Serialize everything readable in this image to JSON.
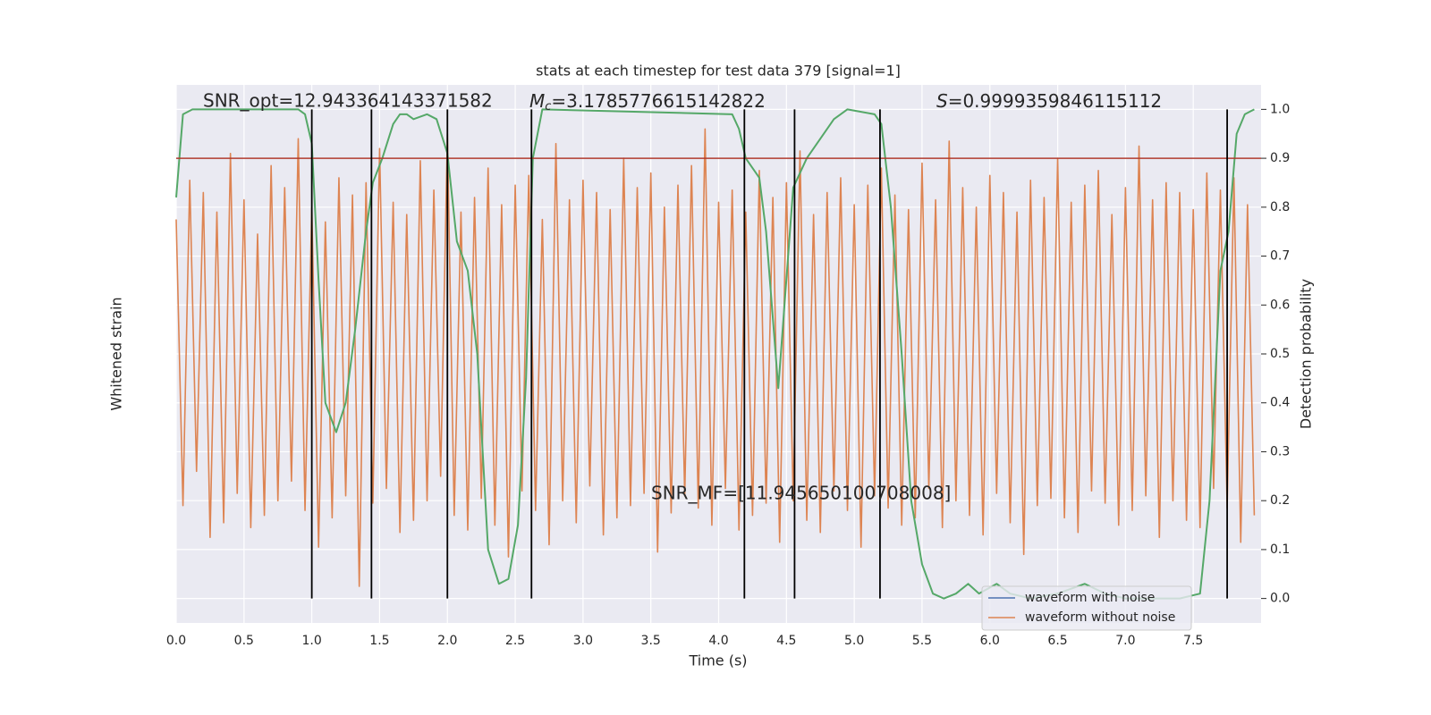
{
  "chart_data": {
    "type": "line",
    "title": "stats at each timestep for test data 379 [signal=1]",
    "xlabel": "Time (s)",
    "ylabel": "Whitened strain",
    "y2label": "Detection probability",
    "xlim": [
      0,
      8
    ],
    "ylim": [
      -1.1,
      1.1
    ],
    "y2lim": [
      -0.05,
      1.05
    ],
    "xticks": [
      {
        "value": 0,
        "label": "0.0"
      },
      0.5,
      {
        "value": 1,
        "label": "1.0"
      },
      1.5,
      {
        "value": 2,
        "label": "2.0"
      },
      2.5,
      {
        "value": 3,
        "label": "3.0"
      },
      3.5,
      {
        "value": 4,
        "label": "4.0"
      },
      4.5,
      {
        "value": 5,
        "label": "5.0"
      },
      5.5,
      {
        "value": 6,
        "label": "6.0"
      },
      6.5,
      {
        "value": 7,
        "label": "7.0"
      },
      7.5
    ],
    "y2ticks": [
      {
        "value": 0,
        "label": "0.0"
      },
      0.1,
      0.2,
      0.3,
      0.4,
      0.5,
      0.6,
      0.7,
      0.8,
      0.9,
      {
        "value": 1,
        "label": "1.0"
      }
    ],
    "grid": true,
    "legend": "lower right",
    "series": [
      {
        "name": "waveform with noise",
        "color": "#4c72b0"
      },
      {
        "name": "waveform without noise",
        "color": "#dd8452",
        "x": [
          0,
          0.05,
          0.1,
          0.15,
          0.2,
          0.25,
          0.3,
          0.35,
          0.4,
          0.45,
          0.5,
          0.55,
          0.6,
          0.65,
          0.7,
          0.75,
          0.8,
          0.85,
          0.9,
          0.95,
          1,
          1.05,
          1.1,
          1.15,
          1.2,
          1.25,
          1.3,
          1.35,
          1.4,
          1.45,
          1.5,
          1.55,
          1.6,
          1.65,
          1.7,
          1.75,
          1.8,
          1.85,
          1.9,
          1.95,
          2,
          2.05,
          2.1,
          2.15,
          2.2,
          2.25,
          2.3,
          2.35,
          2.4,
          2.45,
          2.5,
          2.55,
          2.6,
          2.65,
          2.7,
          2.75,
          2.8,
          2.85,
          2.9,
          2.95,
          3,
          3.05,
          3.1,
          3.15,
          3.2,
          3.25,
          3.3,
          3.35,
          3.4,
          3.45,
          3.5,
          3.55,
          3.6,
          3.65,
          3.7,
          3.75,
          3.8,
          3.85,
          3.9,
          3.95,
          4,
          4.05,
          4.1,
          4.15,
          4.2,
          4.25,
          4.3,
          4.35,
          4.4,
          4.45,
          4.5,
          4.55,
          4.6,
          4.65,
          4.7,
          4.75,
          4.8,
          4.85,
          4.9,
          4.95,
          5,
          5.05,
          5.1,
          5.15,
          5.2,
          5.25,
          5.3,
          5.35,
          5.4,
          5.45,
          5.5,
          5.55,
          5.6,
          5.65,
          5.7,
          5.75,
          5.8,
          5.85,
          5.9,
          5.95,
          6,
          6.05,
          6.1,
          6.15,
          6.2,
          6.25,
          6.3,
          6.35,
          6.4,
          6.45,
          6.5,
          6.55,
          6.6,
          6.65,
          6.7,
          6.75,
          6.8,
          6.85,
          6.9,
          6.95,
          7,
          7.05,
          7.1,
          7.15,
          7.2,
          7.25,
          7.3,
          7.35,
          7.4,
          7.45,
          7.5,
          7.55,
          7.6,
          7.65,
          7.7,
          7.75,
          7.8,
          7.85,
          7.9,
          7.95
        ],
        "values": [
          0.55,
          -0.62,
          0.71,
          -0.48,
          0.66,
          -0.75,
          0.58,
          -0.69,
          0.82,
          -0.57,
          0.63,
          -0.71,
          0.49,
          -0.66,
          0.77,
          -0.6,
          0.68,
          -0.52,
          0.88,
          -0.64,
          0.6,
          -0.79,
          0.54,
          -0.67,
          0.72,
          -0.58,
          0.65,
          -0.95,
          0.7,
          -0.61,
          0.84,
          -0.55,
          0.62,
          -0.73,
          0.57,
          -0.68,
          0.79,
          -0.6,
          0.67,
          -0.5,
          0.9,
          -0.66,
          0.58,
          -0.72,
          0.64,
          -0.59,
          0.76,
          -0.7,
          0.61,
          -0.83,
          0.69,
          -0.56,
          0.73,
          -0.64,
          0.55,
          -0.78,
          0.86,
          -0.6,
          0.63,
          -0.69,
          0.71,
          -0.54,
          0.66,
          -0.74,
          0.59,
          -0.67,
          0.8,
          -0.62,
          0.68,
          -0.57,
          0.74,
          -0.81,
          0.6,
          -0.65,
          0.69,
          -0.58,
          0.77,
          -0.63,
          0.92,
          -0.7,
          0.62,
          -0.55,
          0.67,
          -0.72,
          0.58,
          -0.66,
          0.75,
          -0.61,
          0.64,
          -0.77,
          0.7,
          -0.6,
          0.83,
          -0.68,
          0.57,
          -0.73,
          0.66,
          -0.56,
          0.72,
          -0.64,
          0.61,
          -0.79,
          0.69,
          -0.58,
          0.76,
          -0.63,
          0.65,
          -0.7,
          0.59,
          -0.67,
          0.78,
          -0.55,
          0.63,
          -0.71,
          0.87,
          -0.6,
          0.68,
          -0.66,
          0.6,
          -0.74,
          0.73,
          -0.57,
          0.66,
          -0.69,
          0.58,
          -0.82,
          0.71,
          -0.62,
          0.64,
          -0.59,
          0.8,
          -0.67,
          0.62,
          -0.73,
          0.69,
          -0.56,
          0.75,
          -0.61,
          0.57,
          -0.7,
          0.68,
          -0.64,
          0.85,
          -0.58,
          0.63,
          -0.75,
          0.7,
          -0.6,
          0.66,
          -0.68,
          0.59,
          -0.71,
          0.74,
          -0.55,
          0.67,
          -0.63,
          0.72,
          -0.77,
          0.61,
          -0.66
        ]
      },
      {
        "name": "Detection probability",
        "color": "#55a868",
        "axis": "y2",
        "x": [
          0,
          0.05,
          0.12,
          0.9,
          0.95,
          1.0,
          1.05,
          1.1,
          1.18,
          1.25,
          1.32,
          1.4,
          1.45,
          1.52,
          1.6,
          1.65,
          1.7,
          1.75,
          1.85,
          1.92,
          2.0,
          2.07,
          2.15,
          2.22,
          2.3,
          2.38,
          2.45,
          2.52,
          2.58,
          2.63,
          2.7,
          4.1,
          4.15,
          4.2,
          4.3,
          4.35,
          4.44,
          4.55,
          4.65,
          4.75,
          4.85,
          4.95,
          5.15,
          5.2,
          5.27,
          5.35,
          5.42,
          5.5,
          5.58,
          5.66,
          5.75,
          5.84,
          5.92,
          6.05,
          6.15,
          6.3,
          6.5,
          6.7,
          6.85,
          7.0,
          7.4,
          7.55,
          7.62,
          7.7,
          7.76,
          7.82,
          7.88,
          7.95
        ],
        "values": [
          0.82,
          0.99,
          1.0,
          1.0,
          0.99,
          0.93,
          0.65,
          0.4,
          0.34,
          0.4,
          0.55,
          0.75,
          0.85,
          0.9,
          0.97,
          0.99,
          0.99,
          0.98,
          0.99,
          0.98,
          0.91,
          0.73,
          0.67,
          0.5,
          0.1,
          0.03,
          0.04,
          0.15,
          0.45,
          0.9,
          1.0,
          0.99,
          0.96,
          0.9,
          0.86,
          0.75,
          0.43,
          0.84,
          0.9,
          0.94,
          0.98,
          1.0,
          0.99,
          0.97,
          0.8,
          0.5,
          0.2,
          0.07,
          0.01,
          0.0,
          0.01,
          0.03,
          0.01,
          0.03,
          0.01,
          0.0,
          0.01,
          0.03,
          0.01,
          0.0,
          0.0,
          0.01,
          0.2,
          0.67,
          0.75,
          0.95,
          0.99,
          1.0
        ]
      }
    ],
    "vlines": [
      1.0,
      1.44,
      2.0,
      2.62,
      4.19,
      4.56,
      5.19,
      7.75
    ],
    "vline_color": "#000000",
    "hline": 0.9,
    "hline_color": "#b03a2e",
    "annotations": [
      {
        "text": "SNR_opt=12.943364143371582"
      },
      {
        "italic": "M",
        "sub": "c",
        "text": "=3.1785776615142822"
      },
      {
        "italic": "S",
        "text": "=0.9999359846115112"
      },
      {
        "text": "SNR_MF=[11.945650100708008]"
      }
    ]
  }
}
